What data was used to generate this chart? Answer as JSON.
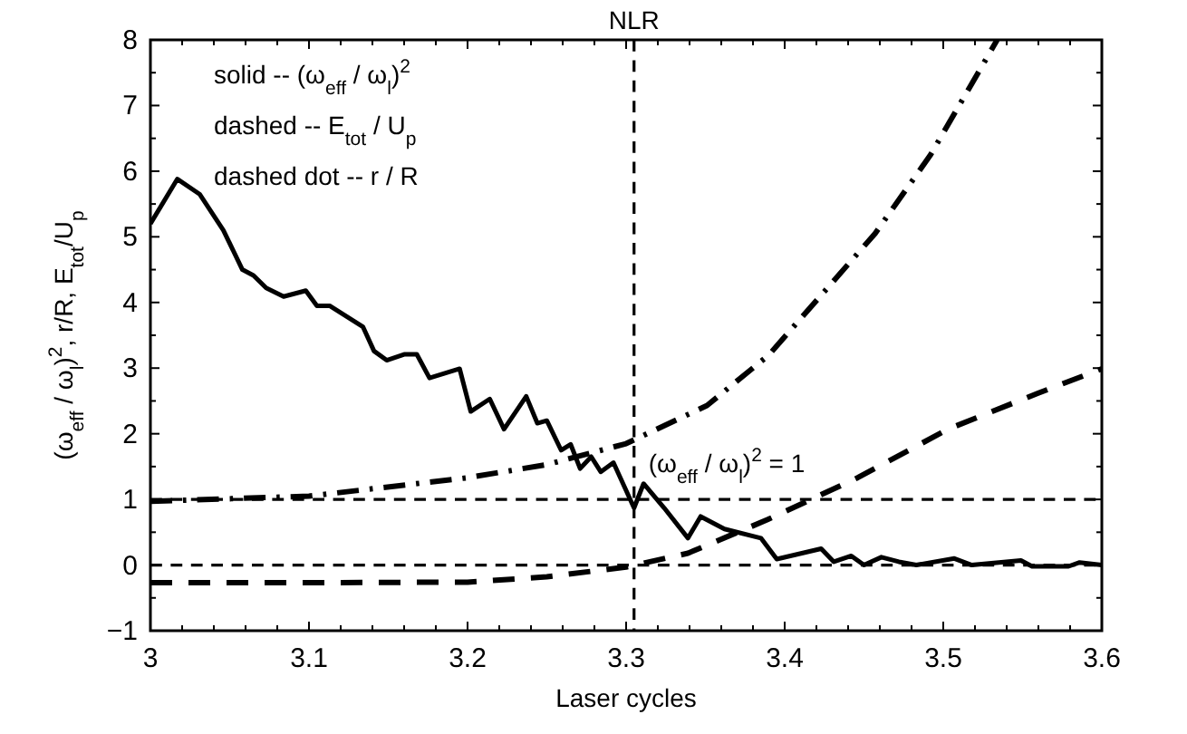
{
  "chart_data": {
    "type": "line",
    "xlabel": "Laser cycles",
    "ylabel": "(ω$_{eff}$ / ω$_{l}$)$^{2}$, r/R, E$_{tot}$/U$_{p}$",
    "xlim": [
      3,
      3.6
    ],
    "ylim": [
      -1,
      8
    ],
    "xticks": [
      3,
      {
        "value": 3.02,
        "label": null
      },
      {
        "value": 3.04,
        "label": null
      },
      {
        "value": 3.06,
        "label": null
      },
      {
        "value": 3.08,
        "label": null
      },
      3.1,
      {
        "value": 3.12,
        "label": null
      },
      {
        "value": 3.14,
        "label": null
      },
      {
        "value": 3.16,
        "label": null
      },
      {
        "value": 3.18,
        "label": null
      },
      3.2,
      {
        "value": 3.22,
        "label": null
      },
      {
        "value": 3.24,
        "label": null
      },
      {
        "value": 3.26,
        "label": null
      },
      {
        "value": 3.28,
        "label": null
      },
      3.3,
      {
        "value": 3.32,
        "label": null
      },
      {
        "value": 3.34,
        "label": null
      },
      {
        "value": 3.36,
        "label": null
      },
      {
        "value": 3.38,
        "label": null
      },
      3.4,
      {
        "value": 3.42,
        "label": null
      },
      {
        "value": 3.44,
        "label": null
      },
      {
        "value": 3.46,
        "label": null
      },
      {
        "value": 3.48,
        "label": null
      },
      3.5,
      {
        "value": 3.52,
        "label": null
      },
      {
        "value": 3.54,
        "label": null
      },
      {
        "value": 3.56,
        "label": null
      },
      {
        "value": 3.58,
        "label": null
      },
      3.6
    ],
    "yticks": [
      -1,
      {
        "value": -0.5,
        "label": null
      },
      0,
      {
        "value": 0.5,
        "label": null
      },
      1,
      {
        "value": 1.5,
        "label": null
      },
      2,
      {
        "value": 2.5,
        "label": null
      },
      3,
      {
        "value": 3.5,
        "label": null
      },
      4,
      {
        "value": 4.5,
        "label": null
      },
      5,
      {
        "value": 5.5,
        "label": null
      },
      6,
      {
        "value": 6.5,
        "label": null
      },
      7,
      {
        "value": 7.5,
        "label": null
      },
      8
    ],
    "grid": false,
    "marker": "none",
    "series": [
      {
        "color": "#000000",
        "line_style": "solid",
        "x": [
          3.0,
          3.017,
          3.031,
          3.046,
          3.058,
          3.065,
          3.073,
          3.084,
          3.098,
          3.105,
          3.113,
          3.134,
          3.141,
          3.149,
          3.16,
          3.168,
          3.176,
          3.195,
          3.202,
          3.214,
          3.223,
          3.237,
          3.244,
          3.25,
          3.259,
          3.265,
          3.271,
          3.278,
          3.284,
          3.292,
          3.305,
          3.311,
          3.324,
          3.339,
          3.347,
          3.362,
          3.385,
          3.395,
          3.423,
          3.431,
          3.442,
          3.45,
          3.461,
          3.472,
          3.483,
          3.507,
          3.518,
          3.549,
          3.556,
          3.579,
          3.586,
          3.6
        ],
        "values": [
          5.2,
          5.88,
          5.65,
          5.1,
          4.5,
          4.41,
          4.22,
          4.09,
          4.18,
          3.95,
          3.95,
          3.63,
          3.26,
          3.12,
          3.21,
          3.21,
          2.85,
          2.99,
          2.34,
          2.53,
          2.07,
          2.57,
          2.16,
          2.2,
          1.75,
          1.84,
          1.47,
          1.65,
          1.42,
          1.56,
          0.87,
          1.24,
          0.87,
          0.41,
          0.74,
          0.55,
          0.41,
          0.09,
          0.25,
          0.05,
          0.14,
          0.0,
          0.12,
          0.05,
          0.0,
          0.1,
          0.0,
          0.07,
          -0.02,
          -0.02,
          0.04,
          0.0
        ]
      },
      {
        "color": "#000000",
        "line_style": "dashed",
        "x": [
          3.0,
          3.1,
          3.2,
          3.25,
          3.3,
          3.339,
          3.389,
          3.446,
          3.503,
          3.56,
          3.6
        ],
        "values": [
          -0.27,
          -0.27,
          -0.26,
          -0.18,
          -0.03,
          0.18,
          0.69,
          1.33,
          2.07,
          2.62,
          2.99
        ]
      },
      {
        "color": "#000000",
        "line_style": "dashdot",
        "x": [
          3.0,
          3.1,
          3.2,
          3.25,
          3.3,
          3.351,
          3.39,
          3.457,
          3.492,
          3.534
        ],
        "values": [
          0.97,
          1.05,
          1.33,
          1.53,
          1.85,
          2.43,
          3.2,
          5.05,
          6.25,
          8.0
        ]
      }
    ],
    "ref_lines": [
      {
        "axis": "x",
        "value": 3.305,
        "label": "NLR",
        "line_style": "dashed",
        "color": "#000000"
      },
      {
        "axis": "y",
        "value": 1,
        "label": "(ω$_{eff}$ / ω$_{l}$)$^{2}$ = 1",
        "line_style": "dashed",
        "color": "#000000"
      },
      {
        "axis": "y",
        "value": 0,
        "line_style": "dashed",
        "color": "#000000"
      }
    ],
    "annotations": [
      "solid -- (ω$_{eff}$ / ω$_{l}$)$^{2}$",
      "dashed -- E$_{tot}$ / U$_{p}$",
      "dashed dot -- r / R"
    ]
  }
}
